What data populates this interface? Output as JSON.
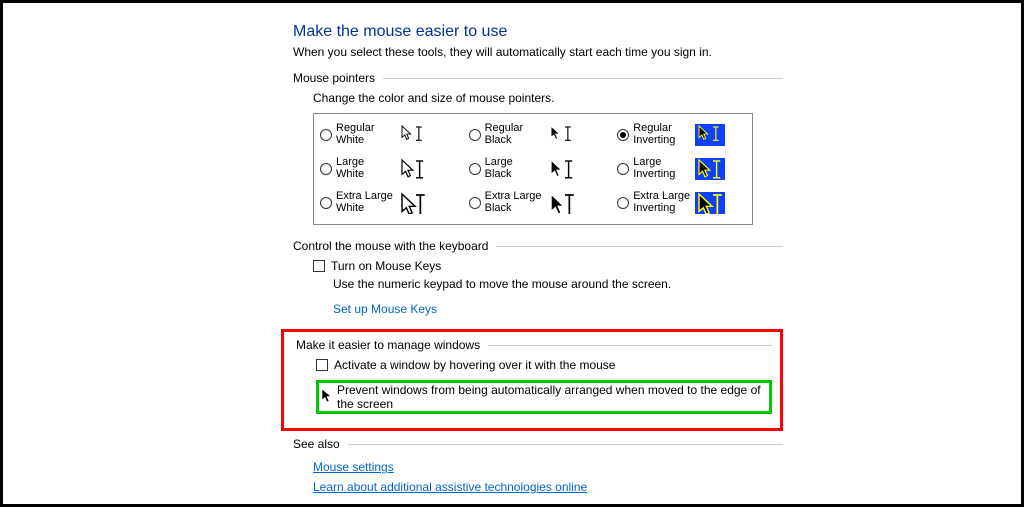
{
  "colors": {
    "title": "#003399",
    "link": "#0066cc",
    "redBox": "#ff0000",
    "greenBox": "#00c800",
    "invertingBg": "#1040ff",
    "border": "#888888",
    "rule": "#cccccc",
    "text": "#000000",
    "frame": "#000000"
  },
  "header": {
    "title": "Make the mouse easier to use",
    "subtitle": "When you select these tools, they will automatically start each time you sign in."
  },
  "mousePointers": {
    "sectionTitle": "Mouse pointers",
    "desc": "Change the color and size of mouse pointers.",
    "options": [
      {
        "key": "regular-white",
        "label": "Regular White",
        "checked": false,
        "style": "white",
        "size": 1
      },
      {
        "key": "regular-black",
        "label": "Regular Black",
        "checked": false,
        "style": "black",
        "size": 1
      },
      {
        "key": "regular-inverting",
        "label": "Regular Inverting",
        "checked": true,
        "style": "inverting",
        "size": 1
      },
      {
        "key": "large-white",
        "label": "Large White",
        "checked": false,
        "style": "white",
        "size": 2
      },
      {
        "key": "large-black",
        "label": "Large Black",
        "checked": false,
        "style": "black",
        "size": 2
      },
      {
        "key": "large-inverting",
        "label": "Large Inverting",
        "checked": false,
        "style": "inverting",
        "size": 2
      },
      {
        "key": "xl-white",
        "label": "Extra Large White",
        "checked": false,
        "style": "white",
        "size": 3
      },
      {
        "key": "xl-black",
        "label": "Extra Large Black",
        "checked": false,
        "style": "black",
        "size": 3
      },
      {
        "key": "xl-inverting",
        "label": "Extra Large Inverting",
        "checked": false,
        "style": "inverting",
        "size": 3
      }
    ]
  },
  "mouseKeys": {
    "sectionTitle": "Control the mouse with the keyboard",
    "checkboxLabel": "Turn on Mouse Keys",
    "checked": false,
    "desc": "Use the numeric keypad to move the mouse around the screen.",
    "link": "Set up Mouse Keys"
  },
  "manageWindows": {
    "sectionTitle": "Make it easier to manage windows",
    "activateLabel": "Activate a window by hovering over it with the mouse",
    "activateChecked": false,
    "preventLabel": "Prevent windows from being automatically arranged when moved to the edge of the screen",
    "preventChecked": false
  },
  "seeAlso": {
    "sectionTitle": "See also",
    "links": [
      "Mouse settings",
      "Learn about additional assistive technologies online"
    ]
  }
}
